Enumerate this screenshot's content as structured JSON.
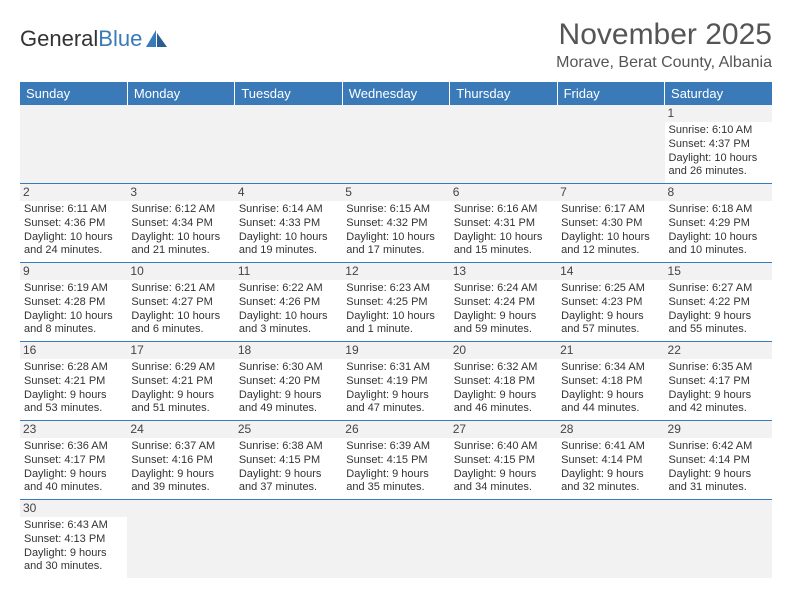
{
  "logo": {
    "part1": "General",
    "part2": "Blue"
  },
  "title": "November 2025",
  "location": "Morave, Berat County, Albania",
  "colors": {
    "header_bg": "#3a7ab8",
    "header_text": "#ffffff",
    "daynum_bg": "#f2f2f2",
    "border": "#3a7ab8",
    "text": "#333333"
  },
  "weekdays": [
    "Sunday",
    "Monday",
    "Tuesday",
    "Wednesday",
    "Thursday",
    "Friday",
    "Saturday"
  ],
  "cells": [
    {
      "n": "",
      "r": "",
      "s": "",
      "d1": "",
      "d2": ""
    },
    {
      "n": "",
      "r": "",
      "s": "",
      "d1": "",
      "d2": ""
    },
    {
      "n": "",
      "r": "",
      "s": "",
      "d1": "",
      "d2": ""
    },
    {
      "n": "",
      "r": "",
      "s": "",
      "d1": "",
      "d2": ""
    },
    {
      "n": "",
      "r": "",
      "s": "",
      "d1": "",
      "d2": ""
    },
    {
      "n": "",
      "r": "",
      "s": "",
      "d1": "",
      "d2": ""
    },
    {
      "n": "1",
      "r": "Sunrise: 6:10 AM",
      "s": "Sunset: 4:37 PM",
      "d1": "Daylight: 10 hours",
      "d2": "and 26 minutes."
    },
    {
      "n": "2",
      "r": "Sunrise: 6:11 AM",
      "s": "Sunset: 4:36 PM",
      "d1": "Daylight: 10 hours",
      "d2": "and 24 minutes."
    },
    {
      "n": "3",
      "r": "Sunrise: 6:12 AM",
      "s": "Sunset: 4:34 PM",
      "d1": "Daylight: 10 hours",
      "d2": "and 21 minutes."
    },
    {
      "n": "4",
      "r": "Sunrise: 6:14 AM",
      "s": "Sunset: 4:33 PM",
      "d1": "Daylight: 10 hours",
      "d2": "and 19 minutes."
    },
    {
      "n": "5",
      "r": "Sunrise: 6:15 AM",
      "s": "Sunset: 4:32 PM",
      "d1": "Daylight: 10 hours",
      "d2": "and 17 minutes."
    },
    {
      "n": "6",
      "r": "Sunrise: 6:16 AM",
      "s": "Sunset: 4:31 PM",
      "d1": "Daylight: 10 hours",
      "d2": "and 15 minutes."
    },
    {
      "n": "7",
      "r": "Sunrise: 6:17 AM",
      "s": "Sunset: 4:30 PM",
      "d1": "Daylight: 10 hours",
      "d2": "and 12 minutes."
    },
    {
      "n": "8",
      "r": "Sunrise: 6:18 AM",
      "s": "Sunset: 4:29 PM",
      "d1": "Daylight: 10 hours",
      "d2": "and 10 minutes."
    },
    {
      "n": "9",
      "r": "Sunrise: 6:19 AM",
      "s": "Sunset: 4:28 PM",
      "d1": "Daylight: 10 hours",
      "d2": "and 8 minutes."
    },
    {
      "n": "10",
      "r": "Sunrise: 6:21 AM",
      "s": "Sunset: 4:27 PM",
      "d1": "Daylight: 10 hours",
      "d2": "and 6 minutes."
    },
    {
      "n": "11",
      "r": "Sunrise: 6:22 AM",
      "s": "Sunset: 4:26 PM",
      "d1": "Daylight: 10 hours",
      "d2": "and 3 minutes."
    },
    {
      "n": "12",
      "r": "Sunrise: 6:23 AM",
      "s": "Sunset: 4:25 PM",
      "d1": "Daylight: 10 hours",
      "d2": "and 1 minute."
    },
    {
      "n": "13",
      "r": "Sunrise: 6:24 AM",
      "s": "Sunset: 4:24 PM",
      "d1": "Daylight: 9 hours",
      "d2": "and 59 minutes."
    },
    {
      "n": "14",
      "r": "Sunrise: 6:25 AM",
      "s": "Sunset: 4:23 PM",
      "d1": "Daylight: 9 hours",
      "d2": "and 57 minutes."
    },
    {
      "n": "15",
      "r": "Sunrise: 6:27 AM",
      "s": "Sunset: 4:22 PM",
      "d1": "Daylight: 9 hours",
      "d2": "and 55 minutes."
    },
    {
      "n": "16",
      "r": "Sunrise: 6:28 AM",
      "s": "Sunset: 4:21 PM",
      "d1": "Daylight: 9 hours",
      "d2": "and 53 minutes."
    },
    {
      "n": "17",
      "r": "Sunrise: 6:29 AM",
      "s": "Sunset: 4:21 PM",
      "d1": "Daylight: 9 hours",
      "d2": "and 51 minutes."
    },
    {
      "n": "18",
      "r": "Sunrise: 6:30 AM",
      "s": "Sunset: 4:20 PM",
      "d1": "Daylight: 9 hours",
      "d2": "and 49 minutes."
    },
    {
      "n": "19",
      "r": "Sunrise: 6:31 AM",
      "s": "Sunset: 4:19 PM",
      "d1": "Daylight: 9 hours",
      "d2": "and 47 minutes."
    },
    {
      "n": "20",
      "r": "Sunrise: 6:32 AM",
      "s": "Sunset: 4:18 PM",
      "d1": "Daylight: 9 hours",
      "d2": "and 46 minutes."
    },
    {
      "n": "21",
      "r": "Sunrise: 6:34 AM",
      "s": "Sunset: 4:18 PM",
      "d1": "Daylight: 9 hours",
      "d2": "and 44 minutes."
    },
    {
      "n": "22",
      "r": "Sunrise: 6:35 AM",
      "s": "Sunset: 4:17 PM",
      "d1": "Daylight: 9 hours",
      "d2": "and 42 minutes."
    },
    {
      "n": "23",
      "r": "Sunrise: 6:36 AM",
      "s": "Sunset: 4:17 PM",
      "d1": "Daylight: 9 hours",
      "d2": "and 40 minutes."
    },
    {
      "n": "24",
      "r": "Sunrise: 6:37 AM",
      "s": "Sunset: 4:16 PM",
      "d1": "Daylight: 9 hours",
      "d2": "and 39 minutes."
    },
    {
      "n": "25",
      "r": "Sunrise: 6:38 AM",
      "s": "Sunset: 4:15 PM",
      "d1": "Daylight: 9 hours",
      "d2": "and 37 minutes."
    },
    {
      "n": "26",
      "r": "Sunrise: 6:39 AM",
      "s": "Sunset: 4:15 PM",
      "d1": "Daylight: 9 hours",
      "d2": "and 35 minutes."
    },
    {
      "n": "27",
      "r": "Sunrise: 6:40 AM",
      "s": "Sunset: 4:15 PM",
      "d1": "Daylight: 9 hours",
      "d2": "and 34 minutes."
    },
    {
      "n": "28",
      "r": "Sunrise: 6:41 AM",
      "s": "Sunset: 4:14 PM",
      "d1": "Daylight: 9 hours",
      "d2": "and 32 minutes."
    },
    {
      "n": "29",
      "r": "Sunrise: 6:42 AM",
      "s": "Sunset: 4:14 PM",
      "d1": "Daylight: 9 hours",
      "d2": "and 31 minutes."
    },
    {
      "n": "30",
      "r": "Sunrise: 6:43 AM",
      "s": "Sunset: 4:13 PM",
      "d1": "Daylight: 9 hours",
      "d2": "and 30 minutes."
    },
    {
      "n": "",
      "r": "",
      "s": "",
      "d1": "",
      "d2": ""
    },
    {
      "n": "",
      "r": "",
      "s": "",
      "d1": "",
      "d2": ""
    },
    {
      "n": "",
      "r": "",
      "s": "",
      "d1": "",
      "d2": ""
    },
    {
      "n": "",
      "r": "",
      "s": "",
      "d1": "",
      "d2": ""
    },
    {
      "n": "",
      "r": "",
      "s": "",
      "d1": "",
      "d2": ""
    },
    {
      "n": "",
      "r": "",
      "s": "",
      "d1": "",
      "d2": ""
    }
  ]
}
